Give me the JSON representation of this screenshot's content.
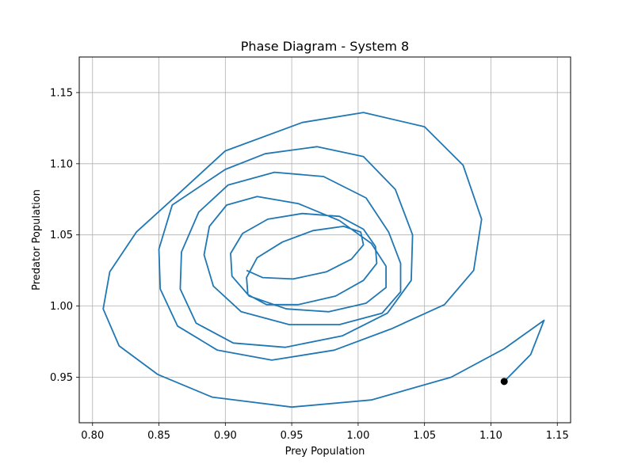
{
  "chart_data": {
    "type": "line",
    "title": "Phase Diagram - System 8",
    "xlabel": "Prey Population",
    "ylabel": "Predator Population",
    "xlim": [
      0.79,
      1.16
    ],
    "ylim": [
      0.918,
      1.175
    ],
    "xticks": [
      "0.80",
      "0.85",
      "0.90",
      "0.95",
      "1.00",
      "1.05",
      "1.10",
      "1.15"
    ],
    "yticks": [
      "0.95",
      "1.00",
      "1.05",
      "1.10",
      "1.15"
    ],
    "grid": true,
    "series": [
      {
        "color": "#1f77b4",
        "x": [
          1.11,
          1.13,
          1.14,
          1.11,
          1.07,
          1.01,
          0.95,
          0.89,
          0.849,
          0.82,
          0.808,
          0.813,
          0.833,
          0.866,
          0.9,
          0.958,
          1.004,
          1.05,
          1.079,
          1.093,
          1.087,
          1.065,
          1.025,
          0.982,
          0.935,
          0.894,
          0.864,
          0.851,
          0.85,
          0.86,
          0.9,
          0.93,
          0.969,
          1.004,
          1.028,
          1.041,
          1.04,
          1.022,
          0.988,
          0.945,
          0.906,
          0.878,
          0.866,
          0.867,
          0.88,
          0.902,
          0.937,
          0.974,
          1.006,
          1.023,
          1.032,
          1.032,
          1.018,
          0.986,
          0.948,
          0.912,
          0.891,
          0.884,
          0.888,
          0.901,
          0.924,
          0.955,
          0.986,
          1.01,
          1.021,
          1.021,
          1.006,
          0.978,
          0.946,
          0.918,
          0.905,
          0.904,
          0.913,
          0.932,
          0.958,
          0.986,
          1.004,
          1.013,
          1.014,
          1.004,
          0.983,
          0.955,
          0.931,
          0.917,
          0.916,
          0.924,
          0.943,
          0.966,
          0.989,
          1.002,
          1.004,
          0.995,
          0.976,
          0.951,
          0.928,
          0.916
        ],
        "y": [
          0.947,
          0.966,
          0.99,
          0.97,
          0.95,
          0.934,
          0.929,
          0.936,
          0.952,
          0.972,
          0.998,
          1.024,
          1.052,
          1.08,
          1.109,
          1.129,
          1.136,
          1.126,
          1.099,
          1.061,
          1.025,
          1.001,
          0.984,
          0.969,
          0.962,
          0.969,
          0.986,
          1.012,
          1.04,
          1.071,
          1.096,
          1.107,
          1.112,
          1.105,
          1.082,
          1.05,
          1.018,
          0.995,
          0.979,
          0.971,
          0.974,
          0.988,
          1.012,
          1.038,
          1.066,
          1.085,
          1.094,
          1.091,
          1.076,
          1.052,
          1.03,
          1.01,
          0.995,
          0.987,
          0.987,
          0.996,
          1.014,
          1.036,
          1.056,
          1.071,
          1.077,
          1.072,
          1.06,
          1.044,
          1.028,
          1.013,
          1.002,
          0.996,
          0.998,
          1.007,
          1.021,
          1.037,
          1.051,
          1.061,
          1.065,
          1.063,
          1.054,
          1.042,
          1.03,
          1.018,
          1.007,
          1.001,
          1.001,
          1.008,
          1.02,
          1.034,
          1.045,
          1.053,
          1.056,
          1.052,
          1.043,
          1.033,
          1.024,
          1.019,
          1.02,
          1.025
        ]
      }
    ],
    "start_point": {
      "x": 1.11,
      "y": 0.947,
      "color": "#000000"
    }
  }
}
